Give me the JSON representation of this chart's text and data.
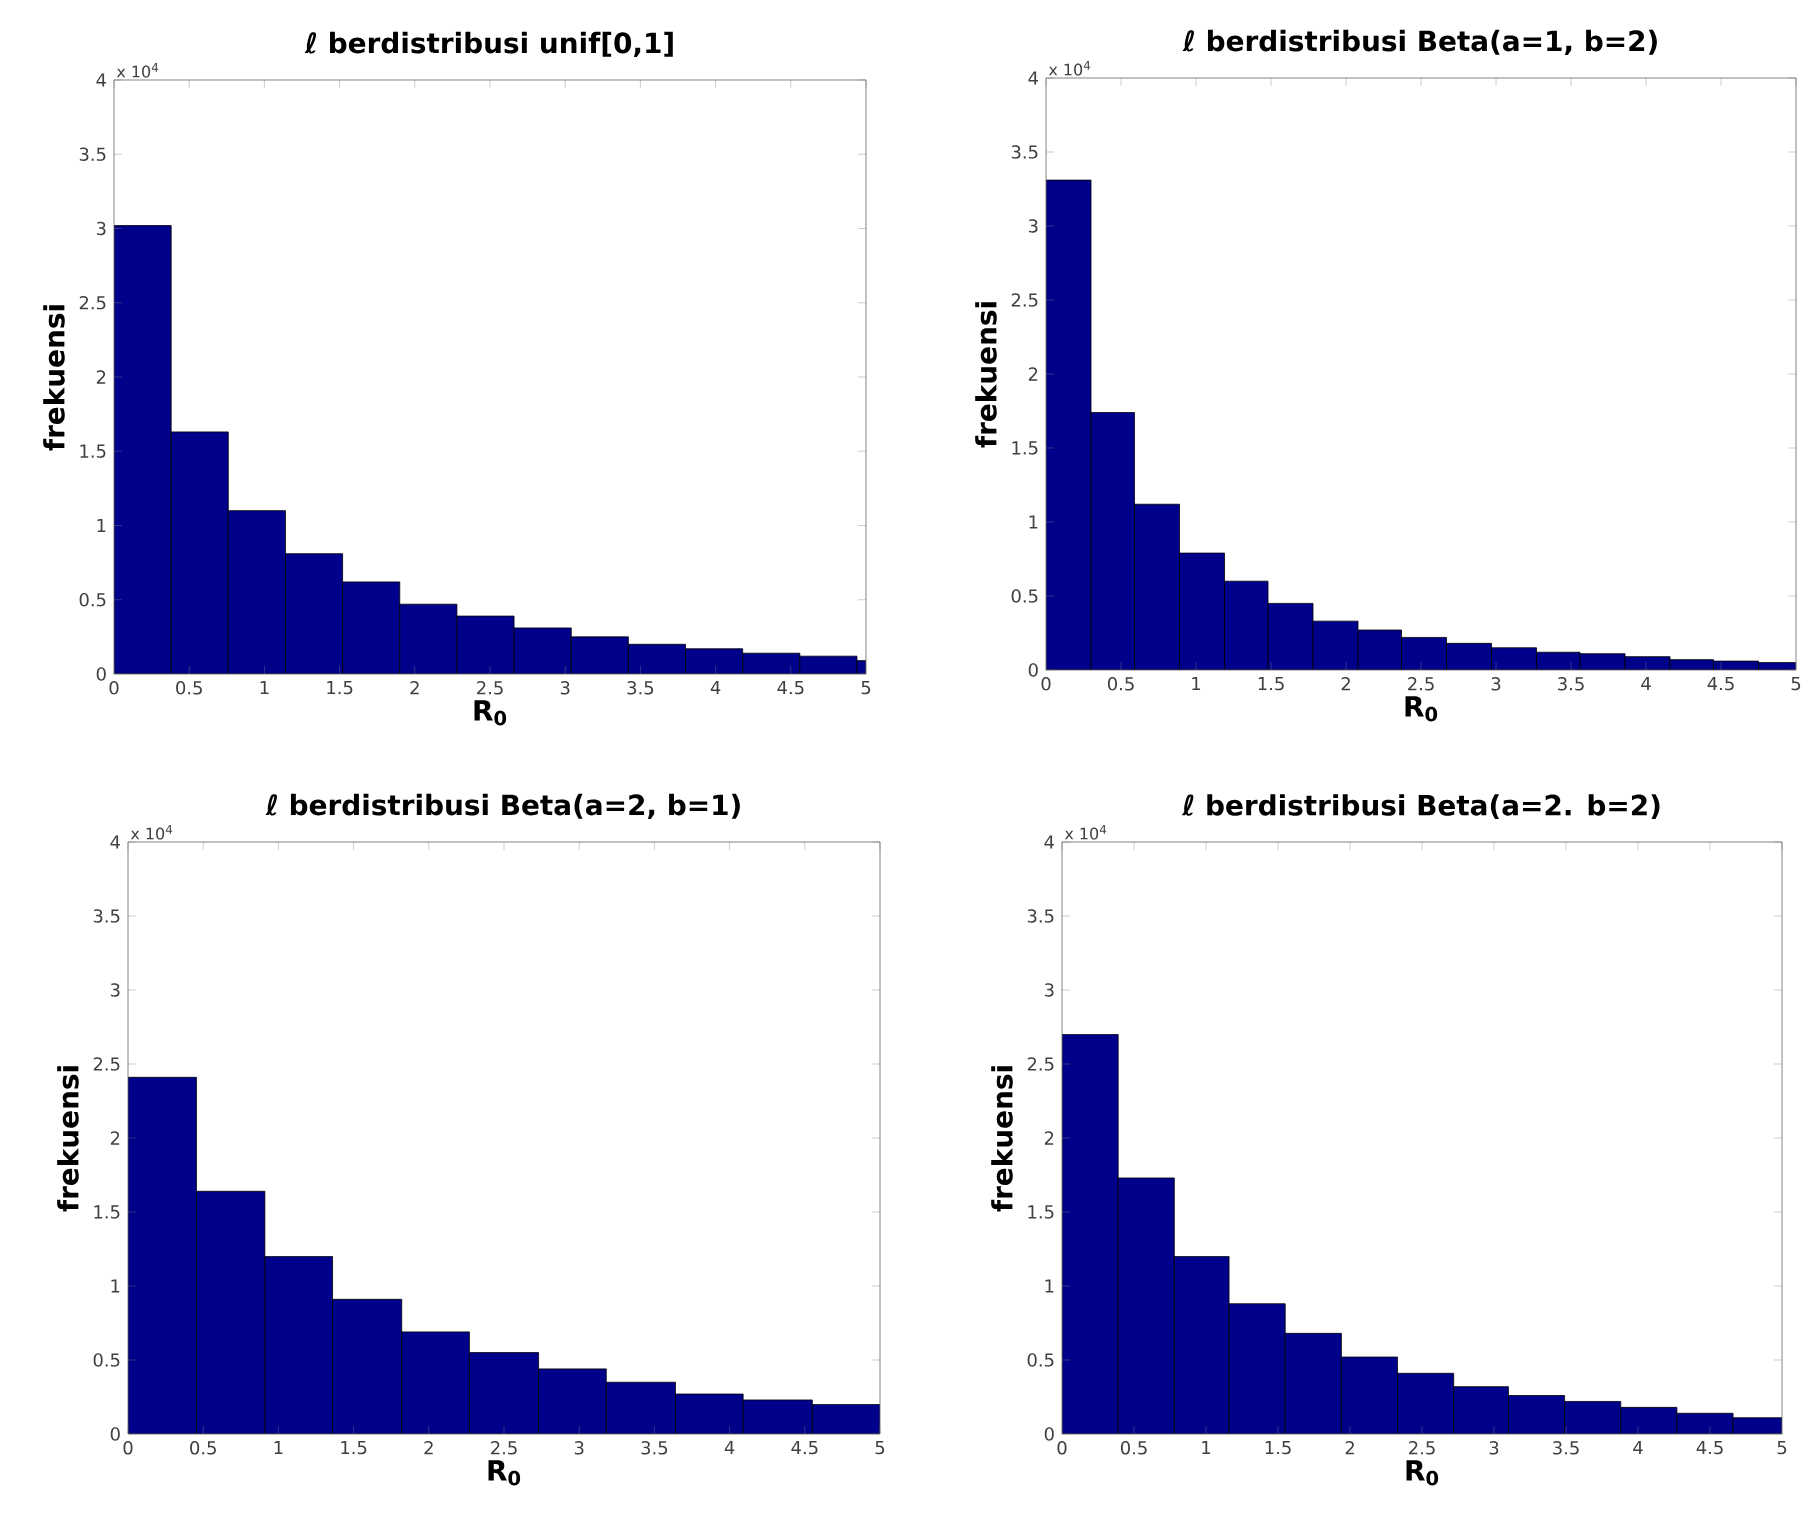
{
  "chart_data": [
    {
      "type": "histogram",
      "title": "ℓ berdistribusi unif[0,1]",
      "xlabel": "R$_{0}$",
      "ylabel": "frekuensi",
      "annotations": [
        "x 10$^{4}$"
      ],
      "color": "#00008b",
      "bins": [
        0,
        0.38,
        0.76,
        1.14,
        1.52,
        1.9,
        2.28,
        2.66,
        3.04,
        3.42,
        3.8,
        4.18,
        4.56,
        4.94,
        5
      ],
      "values": [
        3.02,
        1.63,
        1.1,
        0.81,
        0.62,
        0.47,
        0.39,
        0.31,
        0.25,
        0.2,
        0.17,
        0.14,
        0.12,
        0.09
      ],
      "xlim": [
        0,
        5
      ],
      "ylim": [
        0,
        4
      ],
      "xticks": [
        0,
        0.5,
        1,
        1.5,
        2,
        2.5,
        3,
        3.5,
        4,
        4.5,
        5
      ],
      "yticks": [
        0,
        0.5,
        1,
        1.5,
        2,
        2.5,
        3,
        3.5,
        4
      ]
    },
    {
      "type": "histogram",
      "title": "ℓ berdistribusi Beta(a=1, b=2)",
      "xlabel": "R$_{0}$",
      "ylabel": "frekuensi",
      "annotations": [
        "x 10$^{4}$"
      ],
      "color": "#00008b",
      "bins": [
        0,
        0.3,
        0.59,
        0.89,
        1.19,
        1.48,
        1.78,
        2.08,
        2.37,
        2.67,
        2.97,
        3.27,
        3.56,
        3.86,
        4.16,
        4.45,
        4.75,
        5
      ],
      "values": [
        3.31,
        1.74,
        1.12,
        0.79,
        0.6,
        0.45,
        0.33,
        0.27,
        0.22,
        0.18,
        0.15,
        0.12,
        0.11,
        0.09,
        0.07,
        0.06,
        0.05
      ],
      "xlim": [
        0,
        5
      ],
      "ylim": [
        0,
        4
      ],
      "xticks": [
        0,
        0.5,
        1,
        1.5,
        2,
        2.5,
        3,
        3.5,
        4,
        4.5,
        5
      ],
      "yticks": [
        0,
        0.5,
        1,
        1.5,
        2,
        2.5,
        3,
        3.5,
        4
      ]
    },
    {
      "type": "histogram",
      "title": "ℓ berdistribusi Beta(a=2, b=1)",
      "xlabel": "R$_{0}$",
      "ylabel": "frekuensi",
      "annotations": [
        "x 10$^{4}$"
      ],
      "color": "#00008b",
      "bins": [
        0,
        0.455,
        0.91,
        1.36,
        1.82,
        2.27,
        2.73,
        3.18,
        3.64,
        4.09,
        4.55,
        5
      ],
      "values": [
        2.41,
        1.64,
        1.2,
        0.91,
        0.69,
        0.55,
        0.44,
        0.35,
        0.27,
        0.23,
        0.2
      ],
      "xlim": [
        0,
        5
      ],
      "ylim": [
        0,
        4
      ],
      "xticks": [
        0,
        0.5,
        1,
        1.5,
        2,
        2.5,
        3,
        3.5,
        4,
        4.5,
        5
      ],
      "yticks": [
        0,
        0.5,
        1,
        1.5,
        2,
        2.5,
        3,
        3.5,
        4
      ]
    },
    {
      "type": "histogram",
      "title": "ℓ berdistribusi Beta(a=2. b=2)",
      "xlabel": "R$_{0}$",
      "ylabel": "frekuensi",
      "annotations": [
        "x 10$^{4}$"
      ],
      "color": "#00008b",
      "bins": [
        0,
        0.39,
        0.78,
        1.16,
        1.55,
        1.94,
        2.33,
        2.72,
        3.1,
        3.49,
        3.88,
        4.27,
        4.66,
        5
      ],
      "values": [
        2.7,
        1.73,
        1.2,
        0.88,
        0.68,
        0.52,
        0.41,
        0.32,
        0.26,
        0.22,
        0.18,
        0.14,
        0.11
      ],
      "xlim": [
        0,
        5
      ],
      "ylim": [
        0,
        4
      ],
      "xticks": [
        0,
        0.5,
        1,
        1.5,
        2,
        2.5,
        3,
        3.5,
        4,
        4.5,
        5
      ],
      "yticks": [
        0,
        0.5,
        1,
        1.5,
        2,
        2.5,
        3,
        3.5,
        4
      ]
    }
  ]
}
